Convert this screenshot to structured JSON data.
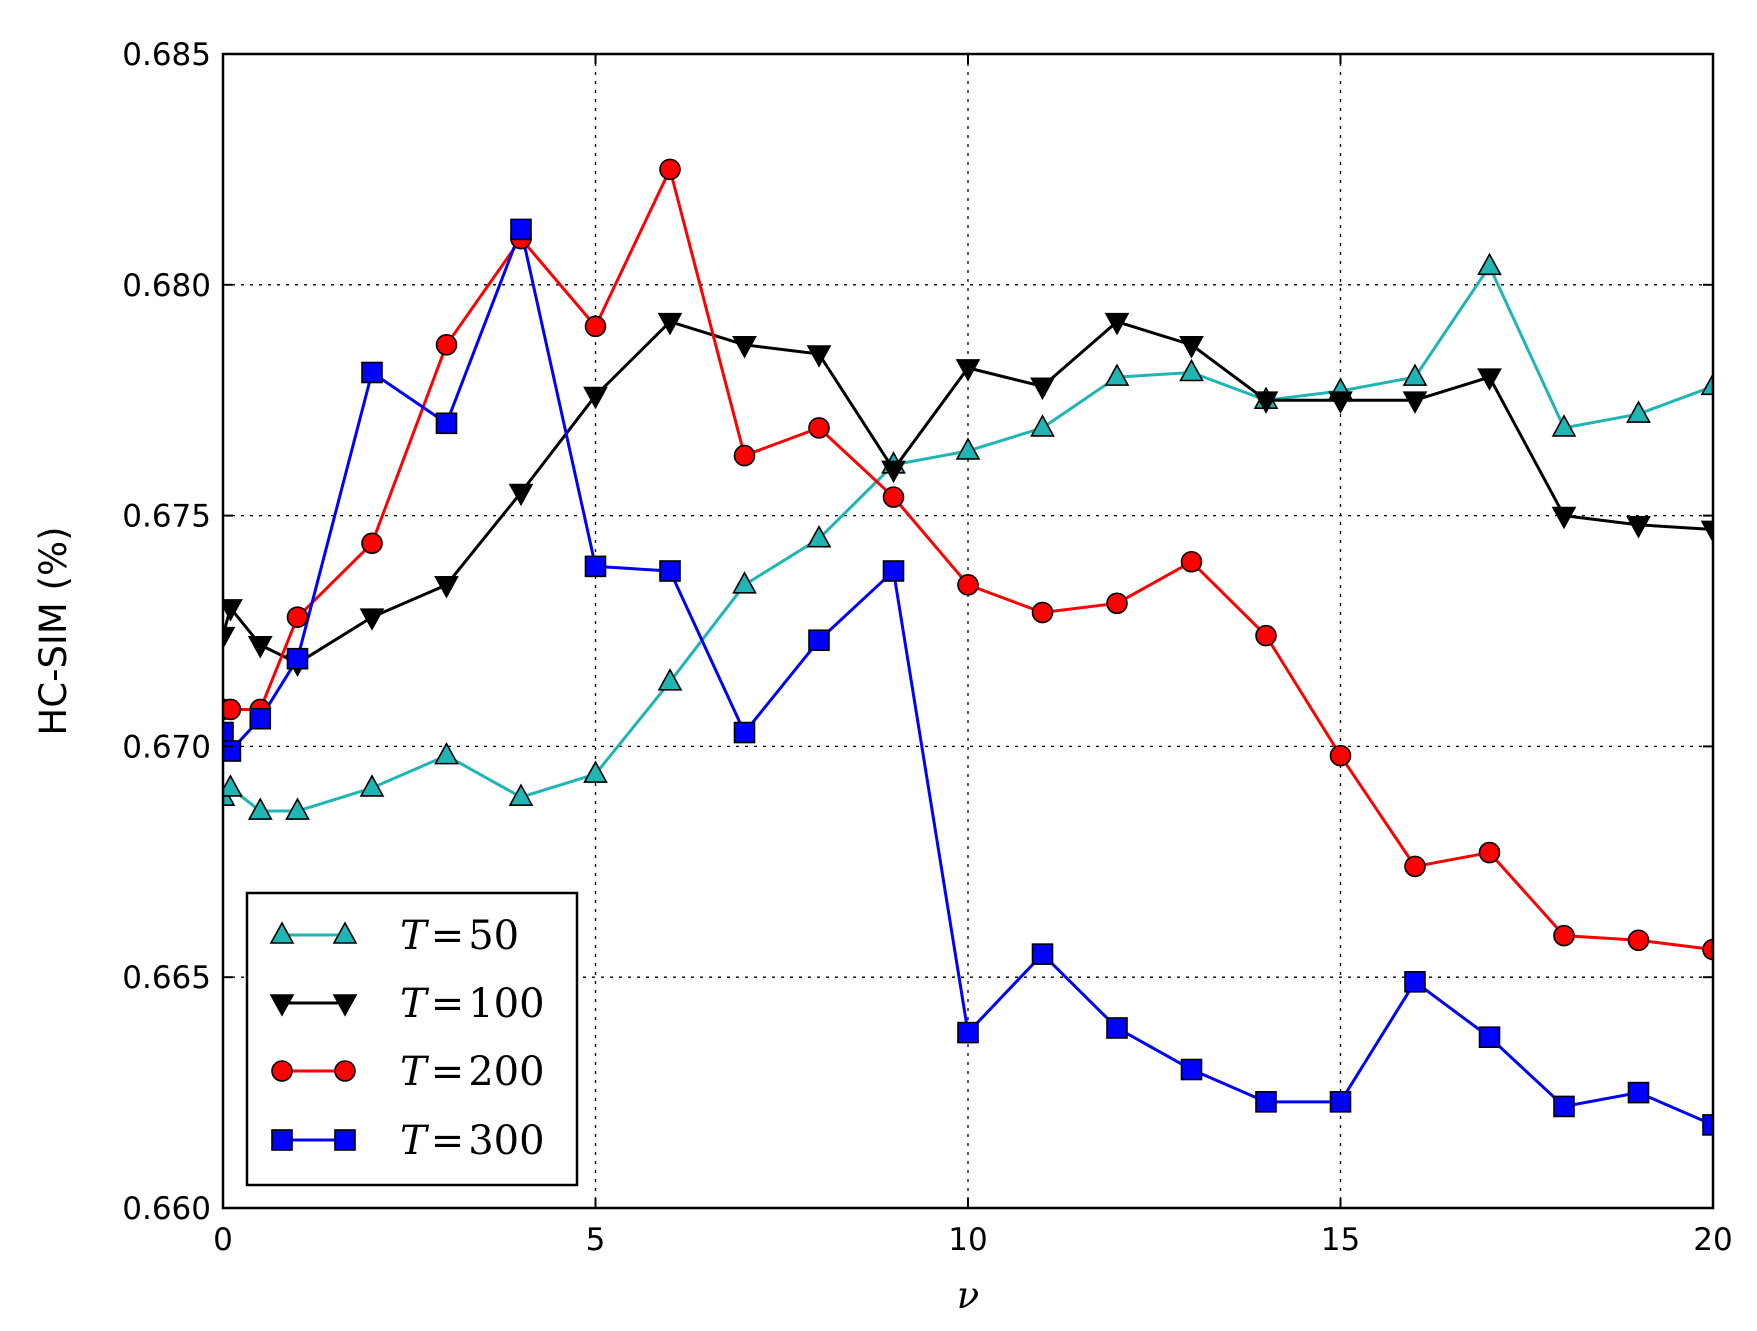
{
  "chart_data": {
    "type": "line",
    "title": "",
    "xlabel": "ν",
    "ylabel": "HC-SIM (%)",
    "xlim": [
      0,
      20
    ],
    "ylim": [
      0.66,
      0.685
    ],
    "xticks": [
      "0",
      "5",
      "10",
      "15",
      "20"
    ],
    "yticks": [
      "0.660",
      "0.665",
      "0.670",
      "0.675",
      "0.680",
      "0.685"
    ],
    "grid": true,
    "legend_position": "lower-left",
    "x": [
      0,
      0.1,
      0.5,
      1,
      2,
      3,
      4,
      5,
      6,
      7,
      8,
      9,
      10,
      11,
      12,
      13,
      14,
      15,
      16,
      17,
      18,
      19,
      20
    ],
    "series": [
      {
        "name": "T = 50",
        "label_var": "T",
        "label_eq": "=",
        "label_val": "50",
        "color": "#1fb5b5",
        "marker": "triangle-up",
        "values": [
          0.6689,
          0.6691,
          0.6686,
          0.6686,
          0.6691,
          0.6698,
          0.6689,
          0.6694,
          0.6714,
          0.6735,
          0.6745,
          0.6761,
          0.6764,
          0.6769,
          0.678,
          0.6781,
          0.6775,
          0.6777,
          0.678,
          0.6804,
          0.6769,
          0.6772,
          0.6778
        ]
      },
      {
        "name": "T = 100",
        "label_var": "T",
        "label_eq": "=",
        "label_val": "100",
        "color": "#000000",
        "marker": "triangle-down",
        "values": [
          0.6724,
          0.673,
          0.6722,
          0.6718,
          0.6728,
          0.6735,
          0.6755,
          0.6776,
          0.6792,
          0.6787,
          0.6785,
          0.676,
          0.6782,
          0.6778,
          0.6792,
          0.6787,
          0.6775,
          0.6775,
          0.6775,
          0.678,
          0.675,
          0.6748,
          0.6747
        ]
      },
      {
        "name": "T = 200",
        "label_var": "T",
        "label_eq": "=",
        "label_val": "200",
        "color": "#ff0000",
        "marker": "circle",
        "values": [
          0.6708,
          0.6708,
          0.6708,
          0.6728,
          0.6744,
          0.6787,
          0.681,
          0.6791,
          0.6825,
          0.6763,
          0.6769,
          0.6754,
          0.6735,
          0.6729,
          0.6731,
          0.674,
          0.6724,
          0.6698,
          0.6674,
          0.6677,
          0.6659,
          0.6658,
          0.6656
        ]
      },
      {
        "name": "T = 300",
        "label_var": "T",
        "label_eq": "=",
        "label_val": "300",
        "color": "#0000ff",
        "marker": "square",
        "values": [
          0.6703,
          0.6699,
          0.6706,
          0.6719,
          0.6781,
          0.677,
          0.6812,
          0.6739,
          0.6738,
          0.6703,
          0.6723,
          0.6738,
          0.6638,
          0.6655,
          0.6639,
          0.663,
          0.6623,
          0.6623,
          0.6649,
          0.6637,
          0.6622,
          0.6625,
          0.6618
        ]
      }
    ]
  }
}
